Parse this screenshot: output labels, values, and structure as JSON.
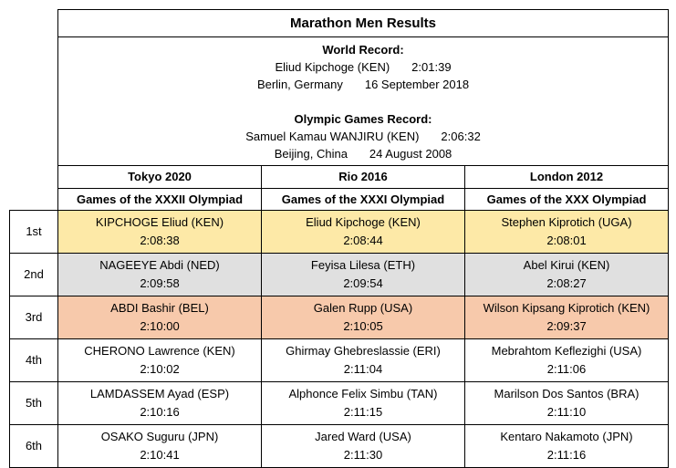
{
  "title": "Marathon Men Results",
  "world_record": {
    "heading": "World Record:",
    "athlete": "Eliud Kipchoge (KEN)",
    "time": "2:01:39",
    "location": "Berlin, Germany",
    "date": "16 September 2018"
  },
  "olympic_record": {
    "heading": "Olympic Games Record:",
    "athlete": "Samuel Kamau WANJIRU (KEN)",
    "time": "2:06:32",
    "location": "Beijing, China",
    "date": "24 August 2008"
  },
  "games": [
    {
      "name": "Tokyo 2020",
      "subtitle": "Games of the XXXII Olympiad"
    },
    {
      "name": "Rio 2016",
      "subtitle": "Games of the XXXI Olympiad"
    },
    {
      "name": "London 2012",
      "subtitle": "Games of the XXX Olympiad"
    }
  ],
  "medal_colors": {
    "gold": "#fde9a7",
    "silver": "#e0e0e0",
    "bronze": "#f7c9ab"
  },
  "rows": [
    {
      "place": "1st",
      "results": [
        {
          "athlete": "KIPCHOGE Eliud (KEN)",
          "time": "2:08:38"
        },
        {
          "athlete": "Eliud Kipchoge (KEN)",
          "time": "2:08:44"
        },
        {
          "athlete": "Stephen Kiprotich  (UGA)",
          "time": "2:08:01"
        }
      ]
    },
    {
      "place": "2nd",
      "results": [
        {
          "athlete": "NAGEEYE Abdi (NED)",
          "time": "2:09:58"
        },
        {
          "athlete": "Feyisa Lilesa (ETH)",
          "time": "2:09:54"
        },
        {
          "athlete": "Abel Kirui (KEN)",
          "time": "2:08:27"
        }
      ]
    },
    {
      "place": "3rd",
      "results": [
        {
          "athlete": "ABDI Bashir (BEL)",
          "time": "2:10:00"
        },
        {
          "athlete": "Galen Rupp (USA)",
          "time": "2:10:05"
        },
        {
          "athlete": "Wilson Kipsang Kiprotich (KEN)",
          "time": "2:09:37"
        }
      ]
    },
    {
      "place": "4th",
      "results": [
        {
          "athlete": "CHERONO Lawrence (KEN)",
          "time": "2:10:02"
        },
        {
          "athlete": "Ghirmay Ghebreslassie (ERI)",
          "time": "2:11:04"
        },
        {
          "athlete": "Mebrahtom Keflezighi (USA)",
          "time": "2:11:06"
        }
      ]
    },
    {
      "place": "5th",
      "results": [
        {
          "athlete": "LAMDASSEM Ayad (ESP)",
          "time": "2:10:16"
        },
        {
          "athlete": "Alphonce Felix Simbu (TAN)",
          "time": "2:11:15"
        },
        {
          "athlete": "Marilson Dos Santos (BRA)",
          "time": "2:11:10"
        }
      ]
    },
    {
      "place": "6th",
      "results": [
        {
          "athlete": "OSAKO Suguru (JPN)",
          "time": "2:10:41"
        },
        {
          "athlete": "Jared Ward (USA)",
          "time": "2:11:30"
        },
        {
          "athlete": "Kentaro Nakamoto (JPN)",
          "time": "2:11:16"
        }
      ]
    }
  ]
}
